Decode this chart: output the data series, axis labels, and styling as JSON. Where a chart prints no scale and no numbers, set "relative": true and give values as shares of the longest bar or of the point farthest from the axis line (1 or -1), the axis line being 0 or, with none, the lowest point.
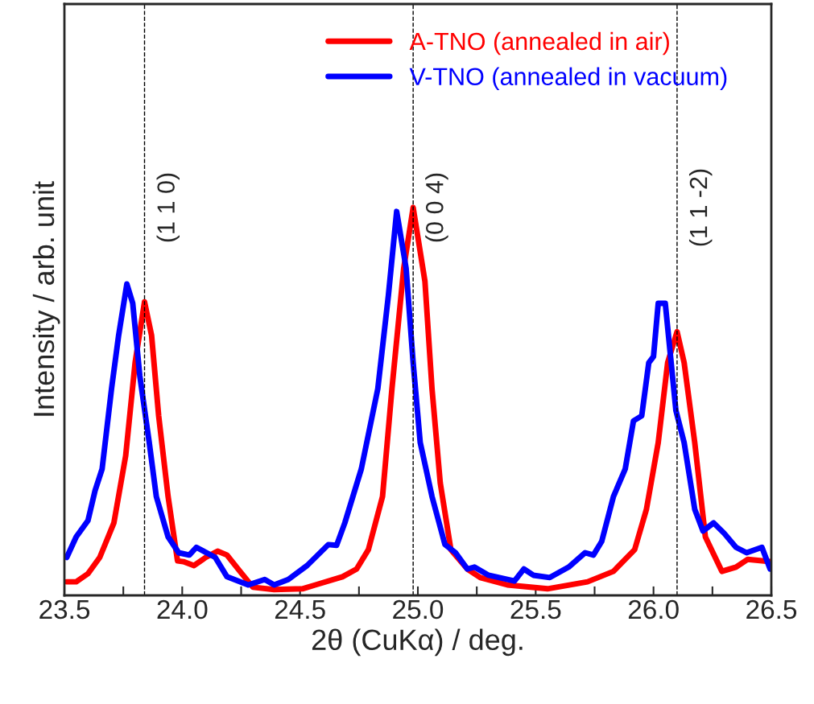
{
  "chart_data": {
    "type": "line",
    "relative": true,
    "xlabel": "2θ (CuKα) / deg.",
    "ylabel": "Intensity / arb. unit",
    "xlim": [
      23.5,
      26.5
    ],
    "xticks": [
      23.5,
      {
        "value": 23.75,
        "label": null
      },
      {
        "value": 24,
        "label": "24.0"
      },
      {
        "value": 24.25,
        "label": null
      },
      24.5,
      {
        "value": 24.75,
        "label": null
      },
      {
        "value": 25,
        "label": "25.0"
      },
      {
        "value": 25.25,
        "label": null
      },
      25.5,
      {
        "value": 25.75,
        "label": null
      },
      {
        "value": 26,
        "label": "26.0"
      },
      {
        "value": 26.25,
        "label": null
      },
      26.5
    ],
    "tick_labels": "x",
    "grid": false,
    "legend": "top right",
    "line_style": "solid",
    "marker": "none",
    "ref_lines": [
      {
        "axis": "x",
        "value": 23.84,
        "color": "#000000",
        "line_style": "dashed"
      },
      {
        "axis": "x",
        "value": 24.98,
        "color": "#000000",
        "line_style": "dashed"
      },
      {
        "axis": "x",
        "value": 26.1,
        "color": "#000000",
        "line_style": "dashed"
      }
    ],
    "annotations": [
      {
        "text": "(1 1 0)",
        "x": 23.84
      },
      {
        "text": "(0 0 4)",
        "x": 24.98
      },
      {
        "text": "(1 1 -2)",
        "x": 26.1
      }
    ],
    "series": [
      {
        "name": "A-TNO (annealed in air)",
        "color": "#ff0000",
        "x": [
          23.51,
          23.55,
          23.6,
          23.65,
          23.71,
          23.76,
          23.8,
          23.84,
          23.87,
          23.9,
          23.94,
          23.98,
          24.005,
          24.05,
          24.1,
          24.15,
          24.19,
          24.245,
          24.3,
          24.39,
          24.51,
          24.565,
          24.68,
          24.74,
          24.79,
          24.85,
          24.89,
          24.94,
          24.98,
          25.03,
          25.06,
          25.095,
          25.14,
          25.21,
          25.265,
          25.38,
          25.55,
          25.72,
          25.83,
          25.92,
          25.97,
          26.02,
          26.06,
          26.1,
          26.13,
          26.175,
          26.22,
          26.29,
          26.35,
          26.4,
          26.495
        ],
        "values": [
          0.035,
          0.035,
          0.056,
          0.098,
          0.187,
          0.36,
          0.6,
          0.757,
          0.67,
          0.463,
          0.255,
          0.089,
          0.087,
          0.077,
          0.098,
          0.114,
          0.104,
          0.062,
          0.021,
          0.015,
          0.017,
          0.027,
          0.048,
          0.068,
          0.118,
          0.255,
          0.533,
          0.844,
          1.0,
          0.81,
          0.533,
          0.29,
          0.118,
          0.068,
          0.046,
          0.027,
          0.017,
          0.035,
          0.062,
          0.118,
          0.222,
          0.394,
          0.6,
          0.68,
          0.6,
          0.394,
          0.151,
          0.062,
          0.073,
          0.093,
          0.087
        ]
      },
      {
        "name": "V-TNO (annealed in vacuum)",
        "color": "#0000ff",
        "x": [
          23.51,
          23.55,
          23.6,
          23.63,
          23.66,
          23.7,
          23.73,
          23.765,
          23.79,
          23.82,
          23.86,
          23.89,
          23.94,
          23.985,
          24.03,
          24.06,
          24.14,
          24.19,
          24.28,
          24.35,
          24.39,
          24.45,
          24.53,
          24.62,
          24.655,
          24.69,
          24.76,
          24.83,
          24.875,
          24.91,
          24.95,
          24.98,
          25.01,
          25.06,
          25.115,
          25.16,
          25.21,
          25.24,
          25.3,
          25.41,
          25.45,
          25.49,
          25.56,
          25.64,
          25.71,
          25.745,
          25.78,
          25.83,
          25.88,
          25.915,
          25.95,
          25.98,
          26.0,
          26.02,
          26.05,
          26.095,
          26.13,
          26.175,
          26.21,
          26.255,
          26.3,
          26.35,
          26.395,
          26.46,
          26.495
        ],
        "values": [
          0.098,
          0.151,
          0.193,
          0.27,
          0.326,
          0.533,
          0.67,
          0.803,
          0.753,
          0.566,
          0.394,
          0.255,
          0.151,
          0.11,
          0.104,
          0.124,
          0.098,
          0.048,
          0.027,
          0.041,
          0.027,
          0.041,
          0.077,
          0.131,
          0.129,
          0.187,
          0.326,
          0.533,
          0.774,
          0.99,
          0.844,
          0.6,
          0.394,
          0.255,
          0.131,
          0.11,
          0.068,
          0.073,
          0.052,
          0.037,
          0.068,
          0.052,
          0.046,
          0.073,
          0.11,
          0.104,
          0.139,
          0.255,
          0.326,
          0.45,
          0.463,
          0.6,
          0.616,
          0.753,
          0.753,
          0.477,
          0.394,
          0.222,
          0.166,
          0.187,
          0.16,
          0.124,
          0.11,
          0.124,
          0.068
        ]
      }
    ]
  }
}
